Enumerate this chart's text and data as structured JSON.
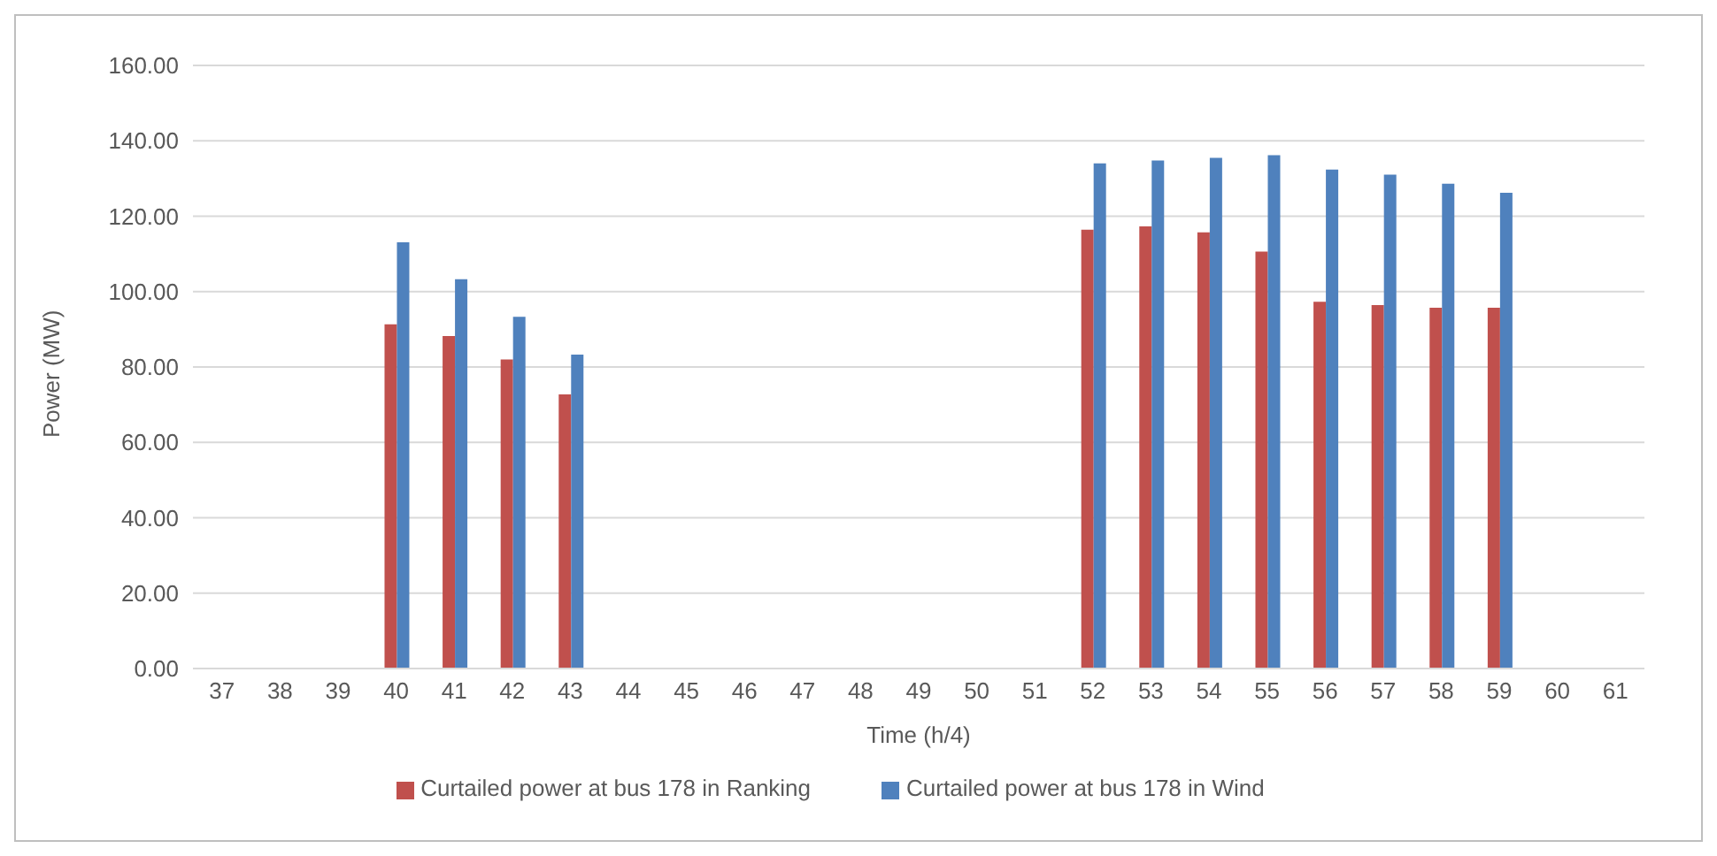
{
  "chart_data": {
    "type": "bar",
    "xlabel": "Time (h/4)",
    "ylabel": "Power (MW)",
    "categories": [
      "37",
      "38",
      "39",
      "40",
      "41",
      "42",
      "43",
      "44",
      "45",
      "46",
      "47",
      "48",
      "49",
      "50",
      "51",
      "52",
      "53",
      "54",
      "55",
      "56",
      "57",
      "58",
      "59",
      "60",
      "61"
    ],
    "series": [
      {
        "name": "Curtailed power at bus 178 in Ranking",
        "color": "#c0504d",
        "values": [
          0,
          0,
          0,
          91.3,
          88.2,
          82.0,
          72.7,
          0,
          0,
          0,
          0,
          0,
          0,
          0,
          0,
          116.4,
          117.3,
          115.7,
          110.6,
          97.3,
          96.4,
          95.7,
          95.7,
          0,
          0
        ]
      },
      {
        "name": "Curtailed power at bus 178 in Wind",
        "color": "#4f81bd",
        "values": [
          0,
          0,
          0,
          113.1,
          103.3,
          93.3,
          83.3,
          0,
          0,
          0,
          0,
          0,
          0,
          0,
          0,
          134.0,
          134.8,
          135.5,
          136.2,
          132.4,
          131.0,
          128.6,
          126.2,
          0,
          0
        ]
      }
    ],
    "ylim": [
      0,
      160
    ],
    "yticks": [
      {
        "value": 0,
        "label": "0.00"
      },
      {
        "value": 20,
        "label": "20.00"
      },
      {
        "value": 40,
        "label": "40.00"
      },
      {
        "value": 60,
        "label": "60.00"
      },
      {
        "value": 80,
        "label": "80.00"
      },
      {
        "value": 100,
        "label": "100.00"
      },
      {
        "value": 120,
        "label": "120.00"
      },
      {
        "value": 140,
        "label": "140.00"
      },
      {
        "value": 160,
        "label": "160.00"
      }
    ],
    "grid": "y",
    "legend": "bottom"
  }
}
